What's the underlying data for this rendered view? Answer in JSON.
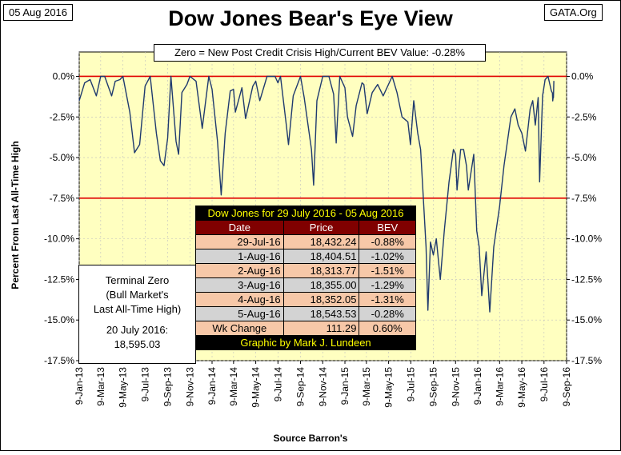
{
  "header": {
    "date_tag": "05 Aug 2016",
    "source_tag": "GATA.Org",
    "title": "Dow Jones Bear's Eye View",
    "subtitle": "Zero = New Post Credit Crisis High/Current BEV Value:  -0.28%"
  },
  "colors": {
    "plot_bg": "#ffffc0",
    "line": "#1f3a6e",
    "ref_line": "#e00000",
    "grid": "#bfbfbf"
  },
  "terminal_box": {
    "line1": "Terminal Zero",
    "line2": "(Bull Market's",
    "line3": "Last All-Time High)",
    "line4": "20 July 2016:",
    "line5": "18,595.03"
  },
  "table": {
    "caption": "Dow Jones for 29 July 2016 - 05 Aug 2016",
    "headers": [
      "Date",
      "Price",
      "BEV"
    ],
    "rows": [
      [
        "29-Jul-16",
        "18,432.24",
        "-0.88%"
      ],
      [
        "1-Aug-16",
        "18,404.51",
        "-1.02%"
      ],
      [
        "2-Aug-16",
        "18,313.77",
        "-1.51%"
      ],
      [
        "3-Aug-16",
        "18,355.00",
        "-1.29%"
      ],
      [
        "4-Aug-16",
        "18,352.05",
        "-1.31%"
      ],
      [
        "5-Aug-16",
        "18,543.53",
        "-0.28%"
      ]
    ],
    "wk_change": [
      "Wk Change",
      "111.29",
      "0.60%"
    ],
    "credit": "Graphic by Mark J. Lundeen"
  },
  "chart_data": {
    "type": "line",
    "title": "Dow Jones Bear's Eye View",
    "subtitle": "Zero = New Post Credit Crisis High/Current BEV Value:  -0.28%",
    "xlabel": "Source Barron's",
    "ylabel": "Percent From Last All-Time High",
    "ylim": [
      -17.5,
      1.5
    ],
    "yticks": [
      "0.0%",
      "-2.5%",
      "-5.0%",
      "-7.5%",
      "-10.0%",
      "-12.5%",
      "-15.0%",
      "-17.5%"
    ],
    "ytick_values": [
      0,
      -2.5,
      -5,
      -7.5,
      -10,
      -12.5,
      -15,
      -17.5
    ],
    "xticks": [
      "9-Jan-13",
      "9-Mar-13",
      "9-May-13",
      "9-Jul-13",
      "9-Sep-13",
      "9-Nov-13",
      "9-Jan-14",
      "9-Mar-14",
      "9-May-14",
      "9-Jul-14",
      "9-Sep-14",
      "9-Nov-14",
      "9-Jan-15",
      "9-Mar-15",
      "9-May-15",
      "9-Jul-15",
      "9-Sep-15",
      "9-Nov-15",
      "9-Jan-16",
      "9-Mar-16",
      "9-May-16",
      "9-Jul-16",
      "9-Sep-16"
    ],
    "x_start": "2013-01-09",
    "x_end": "2016-09-09",
    "reference_lines": [
      0,
      -7.5
    ],
    "grid": true,
    "series": [
      {
        "x": [
          "2013-01-09",
          "2013-01-24",
          "2013-02-08",
          "2013-02-25",
          "2013-03-09",
          "2013-03-20",
          "2013-04-08",
          "2013-04-18",
          "2013-05-01",
          "2013-05-09",
          "2013-05-28",
          "2013-06-10",
          "2013-06-24",
          "2013-07-09",
          "2013-07-23",
          "2013-08-09",
          "2013-08-20",
          "2013-08-30",
          "2013-09-09",
          "2013-09-18",
          "2013-10-02",
          "2013-10-09",
          "2013-10-18",
          "2013-11-01",
          "2013-11-09",
          "2013-11-26",
          "2013-12-09",
          "2013-12-13",
          "2013-12-31",
          "2014-01-09",
          "2014-01-24",
          "2014-02-03",
          "2014-02-14",
          "2014-02-28",
          "2014-03-09",
          "2014-03-14",
          "2014-04-01",
          "2014-04-11",
          "2014-05-01",
          "2014-05-09",
          "2014-05-20",
          "2014-06-09",
          "2014-07-01",
          "2014-07-09",
          "2014-07-16",
          "2014-08-01",
          "2014-08-07",
          "2014-08-20",
          "2014-09-09",
          "2014-09-19",
          "2014-10-01",
          "2014-10-09",
          "2014-10-15",
          "2014-10-24",
          "2014-11-09",
          "2014-11-26",
          "2014-12-09",
          "2014-12-16",
          "2014-12-26",
          "2015-01-09",
          "2015-01-16",
          "2015-01-30",
          "2015-02-09",
          "2015-02-25",
          "2015-03-02",
          "2015-03-11",
          "2015-03-25",
          "2015-04-09",
          "2015-04-24",
          "2015-05-19",
          "2015-06-01",
          "2015-06-15",
          "2015-07-01",
          "2015-07-08",
          "2015-07-17",
          "2015-07-28",
          "2015-08-05",
          "2015-08-20",
          "2015-08-25",
          "2015-09-01",
          "2015-09-09",
          "2015-09-17",
          "2015-09-28",
          "2015-10-09",
          "2015-10-22",
          "2015-11-03",
          "2015-11-09",
          "2015-11-13",
          "2015-11-23",
          "2015-12-01",
          "2015-12-09",
          "2015-12-14",
          "2015-12-29",
          "2016-01-06",
          "2016-01-13",
          "2016-01-20",
          "2016-02-01",
          "2016-02-11",
          "2016-02-22",
          "2016-03-09",
          "2016-03-21",
          "2016-04-09",
          "2016-04-20",
          "2016-04-29",
          "2016-05-09",
          "2016-05-19",
          "2016-06-01",
          "2016-06-08",
          "2016-06-15",
          "2016-06-23",
          "2016-06-27",
          "2016-07-05",
          "2016-07-12",
          "2016-07-20",
          "2016-07-29",
          "2016-08-01",
          "2016-08-02",
          "2016-08-03",
          "2016-08-04",
          "2016-08-05"
        ],
        "y": [
          -1.5,
          -0.4,
          -0.2,
          -1.2,
          0,
          0,
          -1.2,
          -0.3,
          -0.2,
          0,
          -2.2,
          -4.7,
          -4.2,
          -0.6,
          0,
          -3.5,
          -5.2,
          -5.5,
          -3.8,
          0,
          -4.0,
          -4.8,
          -1.0,
          -0.5,
          0,
          -0.3,
          -2.5,
          -3.2,
          0,
          -0.8,
          -4.0,
          -7.3,
          -3.5,
          -0.9,
          -0.8,
          -2.2,
          -0.7,
          -2.6,
          -0.6,
          -0.3,
          -1.5,
          0,
          0,
          -0.4,
          0,
          -3.0,
          -4.2,
          -1.2,
          0,
          -1.3,
          -3.2,
          -4.5,
          -6.7,
          -1.5,
          0,
          0,
          -1.1,
          -4.1,
          0,
          -0.7,
          -2.5,
          -3.7,
          -1.8,
          -0.4,
          -0.5,
          -2.3,
          -1.0,
          -0.5,
          -1.2,
          0,
          -1.0,
          -2.5,
          -2.8,
          -4.2,
          -1.5,
          -3.5,
          -4.5,
          -10.5,
          -14.4,
          -10.2,
          -11.0,
          -10.0,
          -12.5,
          -9.5,
          -6.5,
          -4.5,
          -4.8,
          -7.0,
          -4.5,
          -4.5,
          -5.5,
          -7.0,
          -4.8,
          -9.5,
          -10.5,
          -13.5,
          -10.8,
          -14.5,
          -10.5,
          -8.0,
          -5.5,
          -2.5,
          -2.0,
          -3.0,
          -3.5,
          -4.6,
          -2.0,
          -1.5,
          -3.0,
          -1.3,
          -6.5,
          -1.2,
          -0.2,
          0,
          -0.88,
          -1.02,
          -1.51,
          -1.29,
          -1.31,
          -0.28
        ]
      }
    ]
  }
}
